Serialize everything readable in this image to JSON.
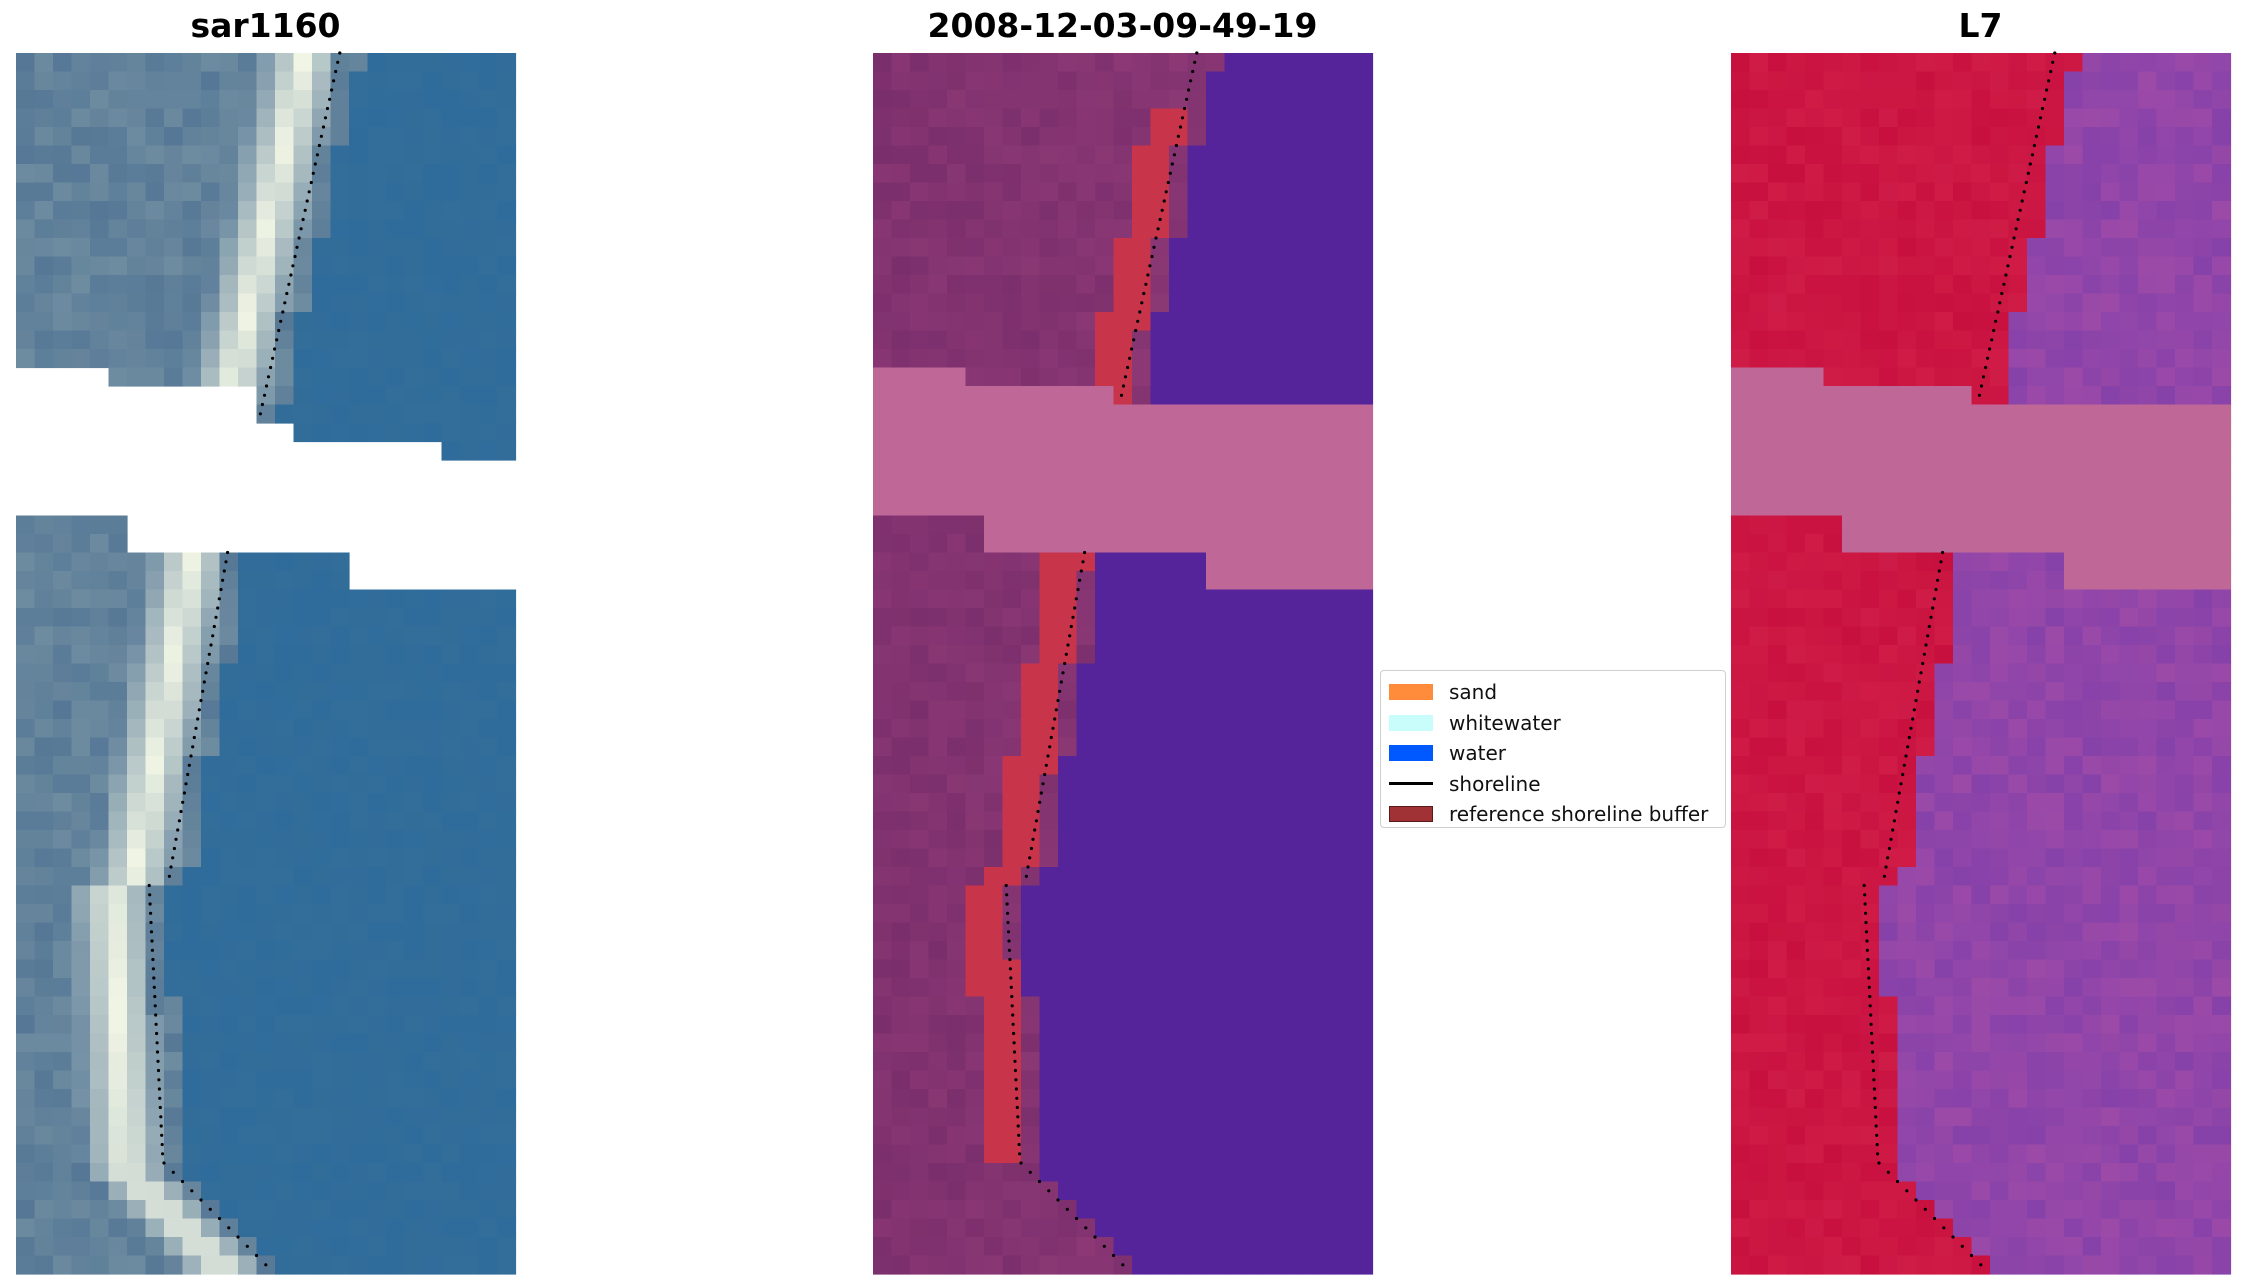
{
  "panels": [
    {
      "title": "sar1160"
    },
    {
      "title": "2008-12-03-09-49-19"
    },
    {
      "title": "L7"
    }
  ],
  "legend": {
    "placement": "center",
    "items": [
      {
        "label": "sand",
        "color": "#ff8c3a"
      },
      {
        "label": "whitewater",
        "color": "#c8fdfb"
      },
      {
        "label": "water",
        "color": "#0059ff"
      },
      {
        "label": "shoreline",
        "color": "#000000"
      },
      {
        "label": "reference shoreline buffer",
        "color": "#a03235"
      }
    ]
  },
  "colors": {
    "rgb_water": "#2f6c9c",
    "rgb_sand_bright": "#f4f7e6",
    "classified_land": "#7a2e6c",
    "classified_water": "#55249a",
    "classified_buffer": "#c8344a",
    "nodata_band": "#bf6898",
    "ndwi_land": "#c8103e",
    "ndwi_water": "#9c4aa8"
  }
}
